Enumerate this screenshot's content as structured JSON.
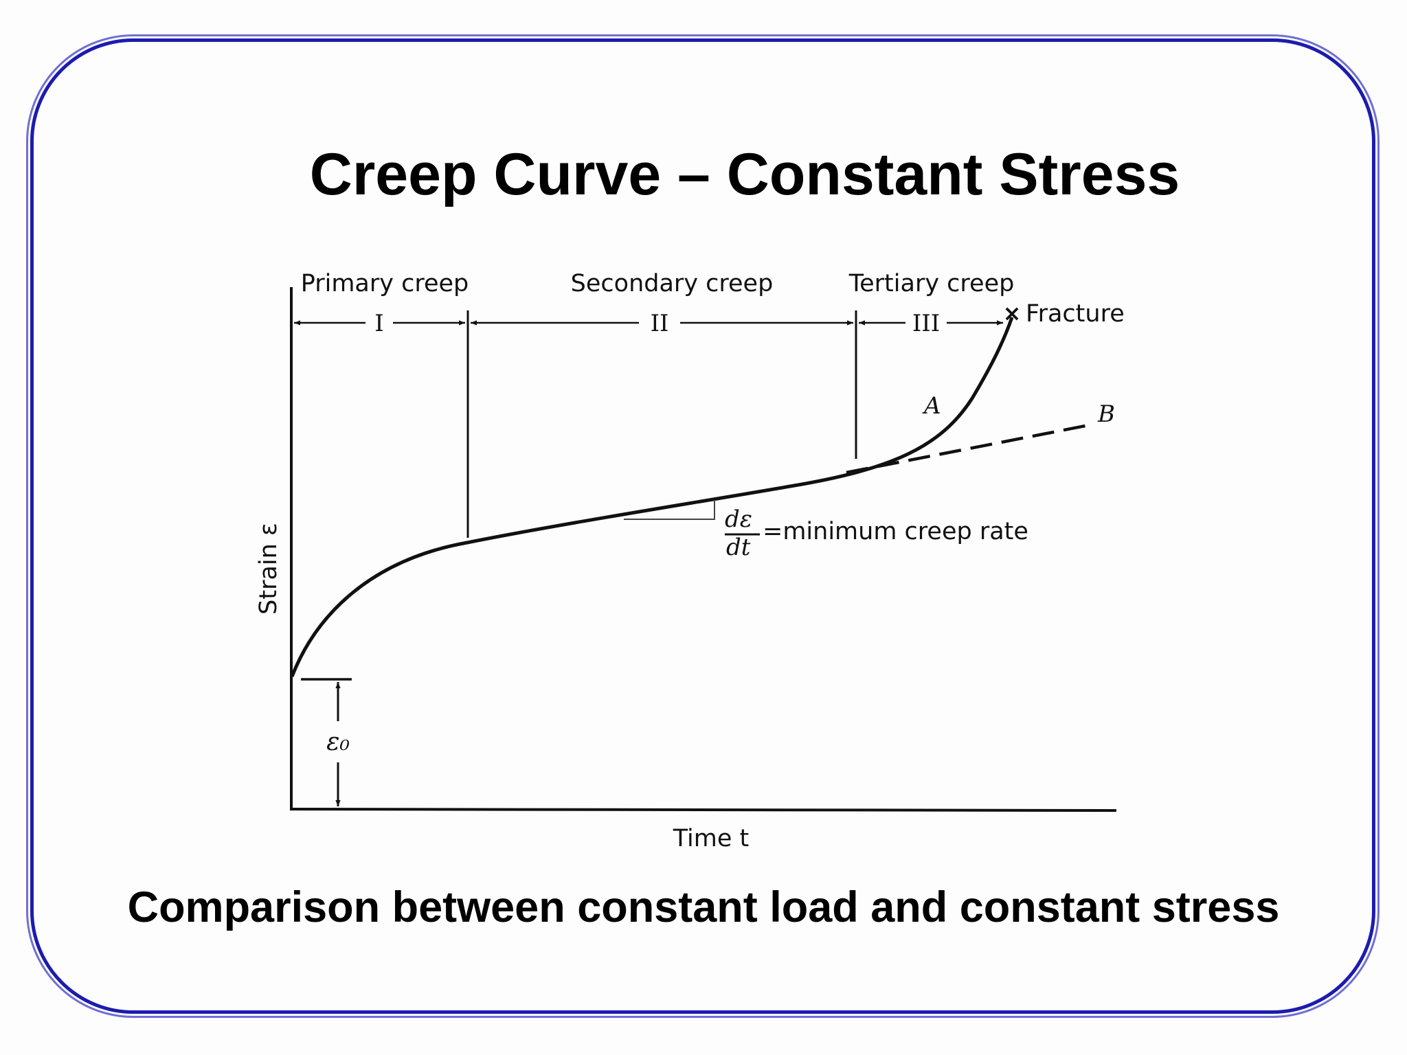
{
  "slide": {
    "title": "Creep Curve – Constant Stress",
    "caption": "Comparison between constant load and constant stress"
  },
  "diagram": {
    "stages": [
      {
        "label": "Primary creep",
        "numeral": "I"
      },
      {
        "label": "Secondary creep",
        "numeral": "II"
      },
      {
        "label": "Tertiary creep",
        "numeral": "III"
      }
    ],
    "fracture_label": "Fracture",
    "fracture_marker": "×",
    "curve_a_label": "A",
    "curve_b_label": "B",
    "rate_numerator": "dε",
    "rate_denominator": "dt",
    "rate_label": "=minimum creep rate",
    "y_axis_label": "Strain ε",
    "x_axis_label": "Time t",
    "initial_strain_label": "ε₀",
    "colors": {
      "frame": "#1c1cae",
      "line": "#111111"
    }
  }
}
